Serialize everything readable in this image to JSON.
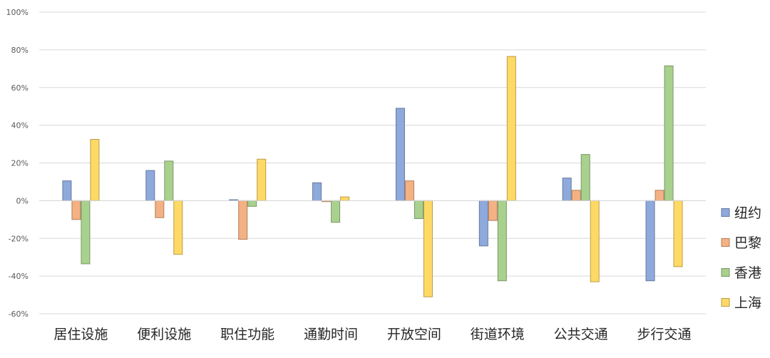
{
  "chart_data": {
    "type": "bar",
    "title": "",
    "xlabel": "",
    "ylabel": "",
    "categories": [
      "居住设施",
      "便利设施",
      "职住功能",
      "通勤时间",
      "开放空间",
      "街道环境",
      "公共交通",
      "步行交通"
    ],
    "series": [
      {
        "name": "纽约",
        "color": "#8EA9DB",
        "values": [
          0.105,
          0.16,
          0.005,
          0.095,
          0.49,
          -0.24,
          0.12,
          -0.425
        ]
      },
      {
        "name": "巴黎",
        "color": "#F4B183",
        "values": [
          -0.1,
          -0.09,
          -0.205,
          -0.005,
          0.105,
          -0.105,
          0.055,
          0.055
        ]
      },
      {
        "name": "香港",
        "color": "#A9D18E",
        "values": [
          -0.335,
          0.21,
          -0.03,
          -0.115,
          -0.095,
          -0.425,
          0.245,
          0.715
        ]
      },
      {
        "name": "上海",
        "color": "#FFD966",
        "values": [
          0.325,
          -0.285,
          0.22,
          0.02,
          -0.51,
          0.765,
          -0.43,
          -0.35
        ]
      }
    ],
    "ylim": [
      -0.6,
      1.0
    ],
    "yticks": [
      -0.6,
      -0.4,
      -0.2,
      0,
      0.2,
      0.4,
      0.6,
      0.8,
      1.0
    ],
    "ytick_labels": [
      "-60%",
      "-40%",
      "-20%",
      "0%",
      "20%",
      "40%",
      "60%",
      "80%",
      "100%"
    ],
    "grid": true,
    "legend_position": "right"
  }
}
